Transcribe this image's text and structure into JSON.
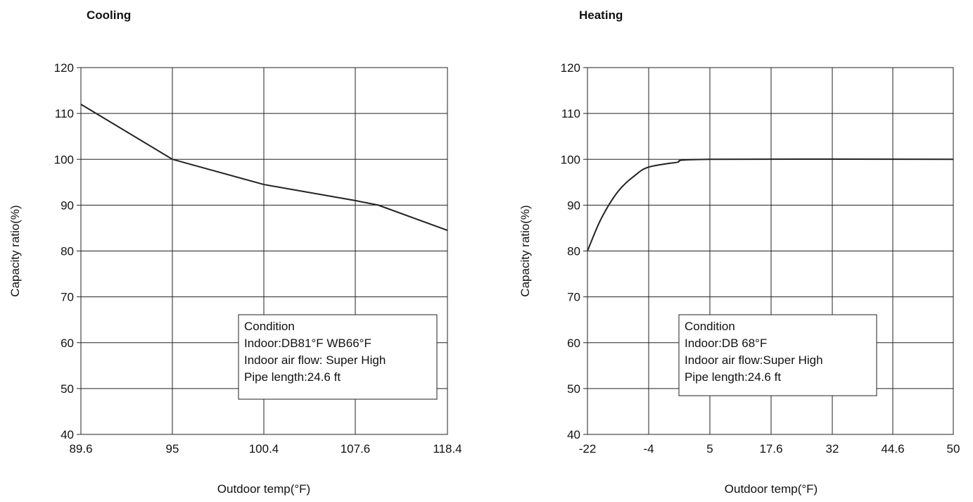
{
  "chart_data": [
    {
      "type": "line",
      "title": "Cooling",
      "xlabel": "Outdoor temp(°F)",
      "ylabel": "Capacity ratio(%)",
      "x_ticks": [
        "89.6",
        "95",
        "100.4",
        "107.6",
        "118.4"
      ],
      "y_ticks": [
        40,
        50,
        60,
        70,
        80,
        90,
        100,
        110,
        120
      ],
      "ylim": [
        40,
        120
      ],
      "grid": true,
      "series": [
        {
          "points": [
            {
              "x": 89.6,
              "y": 112
            },
            {
              "x": 95,
              "y": 100
            },
            {
              "x": 100.4,
              "y": 94.5
            },
            {
              "x": 107.6,
              "y": 91
            },
            {
              "x": 110.3,
              "y": 90
            },
            {
              "x": 118.4,
              "y": 84.5
            }
          ]
        }
      ],
      "condition": {
        "heading": "Condition",
        "lines": [
          "Indoor:DB81°F  WB66°F",
          "Indoor air flow: Super High",
          "Pipe length:24.6 ft"
        ]
      }
    },
    {
      "type": "line",
      "title": "Heating",
      "xlabel": "Outdoor temp(°F)",
      "ylabel": "Capacity ratio(%)",
      "x_ticks": [
        "-22",
        "-4",
        "5",
        "17.6",
        "32",
        "44.6",
        "50"
      ],
      "y_ticks": [
        40,
        50,
        60,
        70,
        80,
        90,
        100,
        110,
        120
      ],
      "ylim": [
        40,
        120
      ],
      "grid": true,
      "series": [
        {
          "points": [
            {
              "x": -22,
              "y": 80
            },
            {
              "x": -18,
              "y": 87
            },
            {
              "x": -13,
              "y": 93
            },
            {
              "x": -8,
              "y": 96.5
            },
            {
              "x": -4,
              "y": 98.3
            },
            {
              "x": 0,
              "y": 99.3
            },
            {
              "x": 5,
              "y": 100
            },
            {
              "x": 50,
              "y": 100
            }
          ]
        }
      ],
      "condition": {
        "heading": "Condition",
        "lines": [
          "Indoor:DB 68°F",
          "Indoor air flow:Super High",
          "Pipe length:24.6 ft"
        ]
      }
    }
  ]
}
